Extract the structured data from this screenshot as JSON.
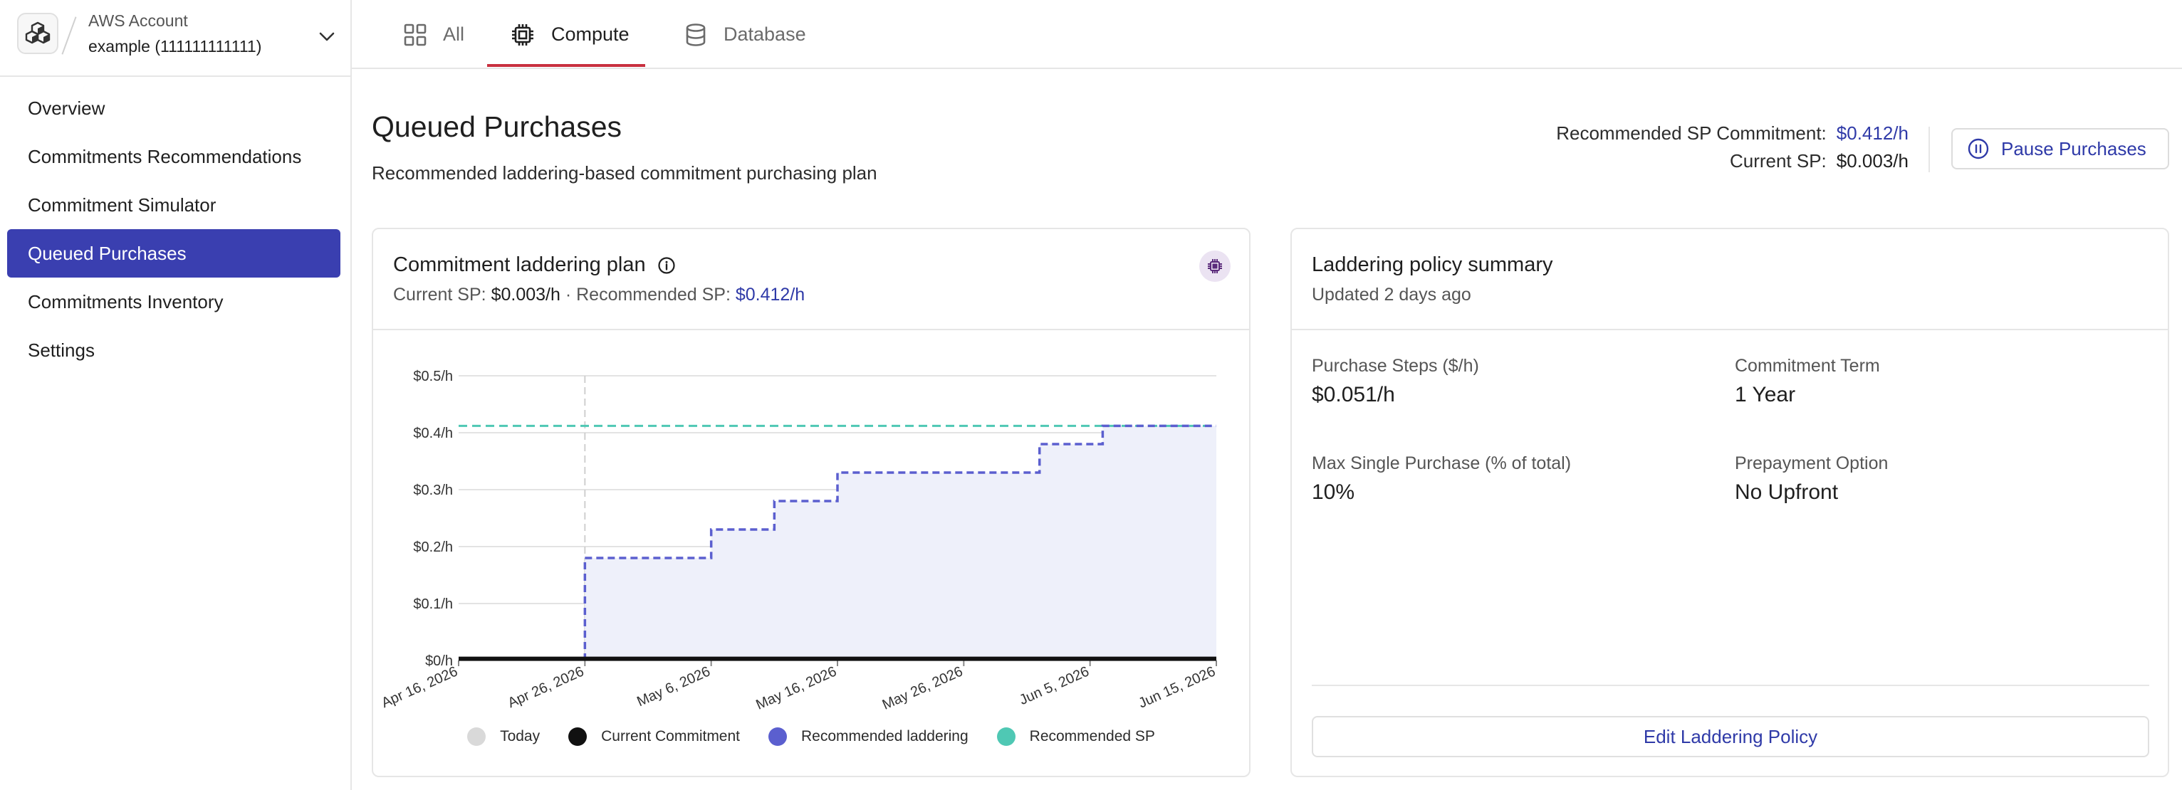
{
  "account": {
    "label": "AWS Account",
    "name": "example (111111111111)"
  },
  "sidebar": {
    "items": [
      {
        "label": "Overview",
        "active": false
      },
      {
        "label": "Commitments Recommendations",
        "active": false
      },
      {
        "label": "Commitment Simulator",
        "active": false
      },
      {
        "label": "Queued Purchases",
        "active": true
      },
      {
        "label": "Commitments Inventory",
        "active": false
      },
      {
        "label": "Settings",
        "active": false
      }
    ]
  },
  "tabs": [
    {
      "label": "All",
      "icon": "grid-icon",
      "active": false
    },
    {
      "label": "Compute",
      "icon": "chip-icon",
      "active": true
    },
    {
      "label": "Database",
      "icon": "database-icon",
      "active": false
    }
  ],
  "header": {
    "title": "Queued Purchases",
    "subtitle": "Recommended laddering-based commitment purchasing plan",
    "recommended_label": "Recommended SP Commitment:",
    "recommended_value": "$0.412/h",
    "current_label": "Current SP:",
    "current_value": "$0.003/h",
    "pause_label": "Pause Purchases"
  },
  "chart_card": {
    "title": "Commitment laddering plan",
    "current_label": "Current SP:",
    "current_value": "$0.003/h",
    "separator": "·",
    "recommended_label": "Recommended SP:",
    "recommended_value": "$0.412/h"
  },
  "colors": {
    "accent": "#3a3fb0",
    "laddering": "#5b5fcf",
    "recommended_sp": "#4fc8b4",
    "current": "#111111",
    "today": "#d9d9d9",
    "tab_underline": "#c8303f"
  },
  "chart_data": {
    "type": "line",
    "x_tick_labels": [
      "Apr 16, 2026",
      "Apr 26, 2026",
      "May 6, 2026",
      "May 16, 2026",
      "May 26, 2026",
      "Jun 5, 2026",
      "Jun 15, 2026"
    ],
    "y_tick_labels": [
      "$0/h",
      "$0.1/h",
      "$0.2/h",
      "$0.3/h",
      "$0.4/h",
      "$0.5/h"
    ],
    "ylim": [
      0,
      0.5
    ],
    "xlim": [
      "2026-04-16",
      "2026-06-15"
    ],
    "grid": true,
    "today": "2026-04-26",
    "series": [
      {
        "name": "Current Commitment",
        "x": [
          "2026-04-16",
          "2026-06-15"
        ],
        "y": [
          0.003,
          0.003
        ]
      },
      {
        "name": "Recommended laddering",
        "x": [
          "2026-04-26",
          "2026-05-06",
          "2026-05-11",
          "2026-05-16",
          "2026-06-01",
          "2026-06-06",
          "2026-06-15"
        ],
        "y": [
          0.18,
          0.23,
          0.28,
          0.33,
          0.38,
          0.412,
          0.412
        ]
      },
      {
        "name": "Recommended SP",
        "x": [
          "2026-04-16",
          "2026-06-15"
        ],
        "y": [
          0.412,
          0.412
        ]
      }
    ],
    "legend": [
      {
        "name": "Today",
        "color": "#d9d9d9"
      },
      {
        "name": "Current Commitment",
        "color": "#111111"
      },
      {
        "name": "Recommended laddering",
        "color": "#5b5fcf"
      },
      {
        "name": "Recommended SP",
        "color": "#4fc8b4"
      }
    ],
    "legend_position": "bottom"
  },
  "policy": {
    "title": "Laddering policy summary",
    "updated": "Updated 2 days ago",
    "fields": [
      {
        "label": "Purchase Steps ($/h)",
        "value": "$0.051/h"
      },
      {
        "label": "Commitment Term",
        "value": "1 Year"
      },
      {
        "label": "Max Single Purchase (% of total)",
        "value": "10%"
      },
      {
        "label": "Prepayment Option",
        "value": "No Upfront"
      }
    ],
    "edit_label": "Edit Laddering Policy"
  }
}
